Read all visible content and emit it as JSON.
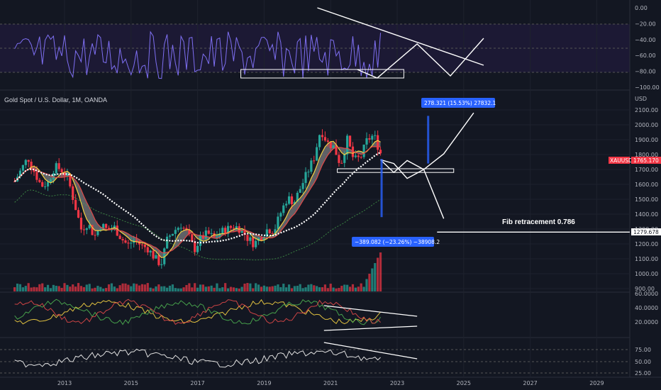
{
  "chart_data": {
    "type": "candlestick",
    "title": "Gold Spot / U.S. Dollar, 1M, OANDA",
    "currency": "USD",
    "x_ticks": [
      "2013",
      "2015",
      "2017",
      "2019",
      "2021",
      "2023",
      "2025",
      "2027",
      "2029"
    ],
    "price_ticks": [
      "2100.00",
      "2000.00",
      "1900.00",
      "1800.00",
      "1700.00",
      "1600.00",
      "1500.00",
      "1400.00",
      "1300.00",
      "1200.00",
      "1100.00",
      "1000.00",
      "900.00"
    ],
    "oscillator_ticks": [
      "0.00",
      "−20.00",
      "−40.00",
      "−60.00",
      "−80.00",
      "−100.00"
    ],
    "adx_ticks": [
      "60.0000",
      "40.0000",
      "20.0000"
    ],
    "rsi_ticks": [
      "75.00",
      "50.00",
      "25.00"
    ],
    "last_price_tag": {
      "symbol": "XAUUSD",
      "price": "1765.170",
      "color": "#f23645"
    },
    "fib_tag": {
      "label": "Fib retracement 0.786",
      "price": "1279.678"
    },
    "measure_up": {
      "text": "278.321 (15.53%) 27832.1",
      "color": "#2962ff"
    },
    "measure_down": {
      "text": "−389.082 (−23.26%) −38908.2",
      "color": "#2962ff"
    },
    "colors": {
      "up": "#26a69a",
      "down": "#f23645",
      "fast_ma": "#f5d142",
      "slow_ma": "#ffffff",
      "ribbon": "#9e9e9e",
      "oscillator": "#7e6ff2"
    },
    "candles": [
      {
        "year": 2011.5,
        "close": 1620
      },
      {
        "year": 2011.7,
        "close": 1700
      },
      {
        "year": 2011.9,
        "close": 1780
      },
      {
        "year": 2012.1,
        "close": 1680
      },
      {
        "year": 2012.3,
        "close": 1590
      },
      {
        "year": 2012.5,
        "close": 1610
      },
      {
        "year": 2012.7,
        "close": 1720
      },
      {
        "year": 2012.9,
        "close": 1700
      },
      {
        "year": 2013.1,
        "close": 1640
      },
      {
        "year": 2013.3,
        "close": 1470
      },
      {
        "year": 2013.5,
        "close": 1300
      },
      {
        "year": 2013.7,
        "close": 1340
      },
      {
        "year": 2013.9,
        "close": 1250
      },
      {
        "year": 2014.1,
        "close": 1330
      },
      {
        "year": 2014.3,
        "close": 1290
      },
      {
        "year": 2014.5,
        "close": 1310
      },
      {
        "year": 2014.7,
        "close": 1240
      },
      {
        "year": 2014.9,
        "close": 1190
      },
      {
        "year": 2015.1,
        "close": 1230
      },
      {
        "year": 2015.3,
        "close": 1190
      },
      {
        "year": 2015.5,
        "close": 1170
      },
      {
        "year": 2015.7,
        "close": 1110
      },
      {
        "year": 2015.9,
        "close": 1060
      },
      {
        "year": 2016.1,
        "close": 1240
      },
      {
        "year": 2016.3,
        "close": 1290
      },
      {
        "year": 2016.5,
        "close": 1330
      },
      {
        "year": 2016.7,
        "close": 1270
      },
      {
        "year": 2016.9,
        "close": 1160
      },
      {
        "year": 2017.1,
        "close": 1240
      },
      {
        "year": 2017.3,
        "close": 1270
      },
      {
        "year": 2017.5,
        "close": 1240
      },
      {
        "year": 2017.7,
        "close": 1280
      },
      {
        "year": 2017.9,
        "close": 1300
      },
      {
        "year": 2018.1,
        "close": 1320
      },
      {
        "year": 2018.3,
        "close": 1300
      },
      {
        "year": 2018.5,
        "close": 1240
      },
      {
        "year": 2018.7,
        "close": 1200
      },
      {
        "year": 2018.9,
        "close": 1250
      },
      {
        "year": 2019.1,
        "close": 1300
      },
      {
        "year": 2019.3,
        "close": 1290
      },
      {
        "year": 2019.5,
        "close": 1410
      },
      {
        "year": 2019.7,
        "close": 1510
      },
      {
        "year": 2019.9,
        "close": 1480
      },
      {
        "year": 2020.1,
        "close": 1580
      },
      {
        "year": 2020.3,
        "close": 1680
      },
      {
        "year": 2020.5,
        "close": 1780
      },
      {
        "year": 2020.7,
        "close": 1970
      },
      {
        "year": 2020.9,
        "close": 1880
      },
      {
        "year": 2021.1,
        "close": 1850
      },
      {
        "year": 2021.3,
        "close": 1730
      },
      {
        "year": 2021.5,
        "close": 1900
      },
      {
        "year": 2021.7,
        "close": 1760
      },
      {
        "year": 2021.9,
        "close": 1780
      },
      {
        "year": 2022.1,
        "close": 1900
      },
      {
        "year": 2022.3,
        "close": 1930
      },
      {
        "year": 2022.5,
        "close": 1810
      }
    ],
    "projection_path": [
      [
        2022.5,
        1765
      ],
      [
        2022.9,
        1680
      ],
      [
        2023.3,
        1760
      ],
      [
        2023.8,
        1700
      ],
      [
        2024.4,
        1805
      ],
      [
        2025.3,
        2080
      ]
    ],
    "projection_down": [
      [
        2022.5,
        1765
      ],
      [
        2022.9,
        1740
      ],
      [
        2023.3,
        1640
      ],
      [
        2023.8,
        1700
      ],
      [
        2024.4,
        1370
      ]
    ],
    "support_box": {
      "year_start": 2021.2,
      "year_end": 2024.7,
      "price_low": 1680,
      "price_high": 1705
    },
    "fib_price": 1279.678
  }
}
